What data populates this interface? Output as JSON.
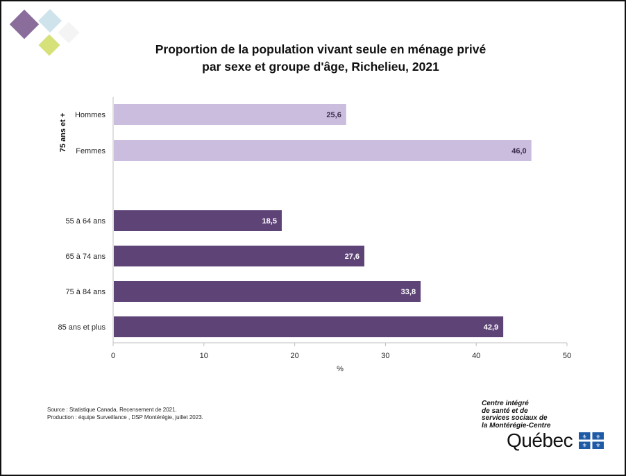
{
  "title_lines": [
    "Proportion de la population vivant seule en ménage privé",
    "par sexe et groupe d'âge, Richelieu, 2021"
  ],
  "chart_data": {
    "type": "bar",
    "orientation": "horizontal",
    "title": "Proportion de la population vivant seule en ménage privé par sexe et groupe d'âge, Richelieu, 2021",
    "xlabel": "%",
    "xlim": [
      0,
      50
    ],
    "xticks": [
      0,
      10,
      20,
      30,
      40,
      50
    ],
    "grid": false,
    "groups": [
      {
        "label": "75 ans et +",
        "color": "#cbbdde",
        "label_color": "#3a2a4a",
        "categories": [
          "Hommes",
          "Femmes"
        ],
        "values": [
          25.6,
          46.0
        ],
        "value_labels": [
          "25,6",
          "46,0"
        ]
      },
      {
        "label": "",
        "color": "#5e4377",
        "label_color": "#ffffff",
        "categories": [
          "55 à 64 ans",
          "65 à 74 ans",
          "75 à 84 ans",
          "85 ans et plus"
        ],
        "values": [
          18.5,
          27.6,
          33.8,
          42.9
        ],
        "value_labels": [
          "18,5",
          "27,6",
          "33,8",
          "42,9"
        ]
      }
    ]
  },
  "footnote": {
    "source": "Source : Statistique Canada, Recensement de 2021.",
    "production": "Production : équipe Surveillance , DSP Montérégie, juillet 2023."
  },
  "logo": {
    "org_lines": [
      "Centre intégré",
      "de santé et de",
      "services sociaux de",
      "la Montérégie-Centre"
    ],
    "wordmark": "Québec",
    "flag_color": "#1f5aa6"
  },
  "decor_colors": [
    "#8b6d9c",
    "#cfe3ec",
    "#d6e17a"
  ]
}
